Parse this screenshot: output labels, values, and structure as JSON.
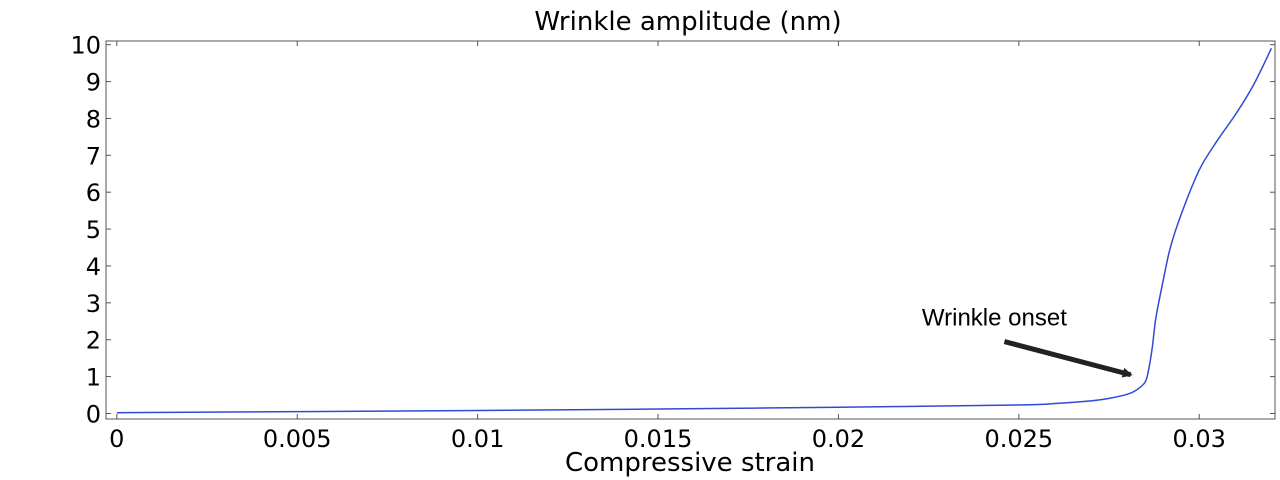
{
  "chart_data": {
    "type": "line",
    "title": "Wrinkle amplitude  (nm)",
    "xlabel": "Compressive strain",
    "ylabel": "",
    "xlim": [
      -0.0003,
      0.0321
    ],
    "ylim": [
      -0.15,
      10.1
    ],
    "grid": false,
    "x_ticks": [
      {
        "value": 0,
        "label": "0"
      },
      {
        "value": 0.005,
        "label": "0.005"
      },
      {
        "value": 0.01,
        "label": "0.01"
      },
      {
        "value": 0.015,
        "label": "0.015"
      },
      {
        "value": 0.02,
        "label": "0.02"
      },
      {
        "value": 0.025,
        "label": "0.025"
      },
      {
        "value": 0.03,
        "label": "0.03"
      }
    ],
    "y_ticks": [
      {
        "value": 0,
        "label": "0"
      },
      {
        "value": 1,
        "label": "1"
      },
      {
        "value": 2,
        "label": "2"
      },
      {
        "value": 3,
        "label": "3"
      },
      {
        "value": 4,
        "label": "4"
      },
      {
        "value": 5,
        "label": "5"
      },
      {
        "value": 6,
        "label": "6"
      },
      {
        "value": 7,
        "label": "7"
      },
      {
        "value": 8,
        "label": "8"
      },
      {
        "value": 9,
        "label": "9"
      },
      {
        "value": 10,
        "label": "10"
      }
    ],
    "series": [
      {
        "color": "#2f4bd6",
        "x": [
          0,
          0.005,
          0.01,
          0.015,
          0.02,
          0.025,
          0.026,
          0.027,
          0.0275,
          0.028,
          0.02825,
          0.0285,
          0.0286,
          0.0287,
          0.0288,
          0.029,
          0.0292,
          0.0295,
          0.03,
          0.0305,
          0.031,
          0.0315,
          0.032
        ],
        "y": [
          0.02,
          0.05,
          0.08,
          0.12,
          0.17,
          0.23,
          0.27,
          0.34,
          0.41,
          0.52,
          0.63,
          0.85,
          1.2,
          1.8,
          2.6,
          3.6,
          4.5,
          5.4,
          6.6,
          7.4,
          8.1,
          8.9,
          9.9
        ]
      }
    ],
    "annotations": [
      {
        "text": "Wrinkle onset",
        "arrow_from": {
          "x": 0.0246,
          "y": 1.95
        },
        "arrow_to": {
          "x": 0.0281,
          "y": 1.05
        }
      }
    ]
  }
}
